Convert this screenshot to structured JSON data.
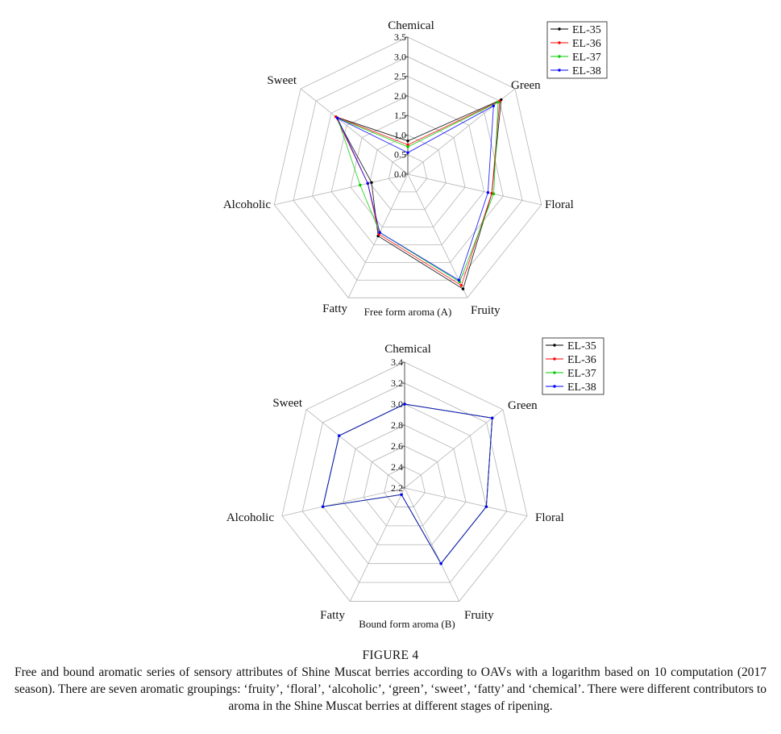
{
  "chart_data": [
    {
      "type": "radar",
      "title": "Free form aroma (A)",
      "axes": [
        "Chemical",
        "Green",
        "Floral",
        "Fruity",
        "Fatty",
        "Alcoholic",
        "Sweet"
      ],
      "rlim": [
        0.0,
        3.5
      ],
      "ticks": [
        "0.0",
        "0.5",
        "1.0",
        "1.5",
        "2.0",
        "2.5",
        "3.0",
        "3.5"
      ],
      "grid": true,
      "legend_position": "top-right",
      "series": [
        {
          "name": "EL-35",
          "color": "#000000",
          "values": [
            0.85,
            3.05,
            2.2,
            3.25,
            1.75,
            0.95,
            2.35
          ]
        },
        {
          "name": "EL-36",
          "color": "#ff0000",
          "values": [
            0.75,
            3.0,
            2.2,
            3.15,
            1.7,
            1.05,
            2.35
          ]
        },
        {
          "name": "EL-37",
          "color": "#00cc00",
          "values": [
            0.7,
            2.95,
            2.25,
            3.05,
            1.65,
            1.25,
            2.3
          ]
        },
        {
          "name": "EL-38",
          "color": "#0000ff",
          "values": [
            0.55,
            2.8,
            2.1,
            3.0,
            1.65,
            1.05,
            2.3
          ]
        }
      ]
    },
    {
      "type": "radar",
      "title": "Bound form aroma (B)",
      "axes": [
        "Chemical",
        "Green",
        "Floral",
        "Fruity",
        "Fatty",
        "Alcoholic",
        "Sweet"
      ],
      "rlim": [
        2.2,
        3.4
      ],
      "ticks": [
        "2.2",
        "2.4",
        "2.6",
        "2.8",
        "3.0",
        "3.2",
        "3.4"
      ],
      "grid": true,
      "legend_position": "top-right",
      "series": [
        {
          "name": "EL-35",
          "color": "#000000",
          "values": [
            3.0,
            3.27,
            3.0,
            3.0,
            2.27,
            3.0,
            3.0
          ]
        },
        {
          "name": "EL-36",
          "color": "#ff0000",
          "values": [
            3.0,
            3.27,
            3.0,
            3.0,
            2.27,
            3.0,
            3.0
          ]
        },
        {
          "name": "EL-37",
          "color": "#00cc00",
          "values": [
            3.0,
            3.27,
            3.0,
            3.0,
            2.27,
            3.0,
            3.0
          ]
        },
        {
          "name": "EL-38",
          "color": "#0000ff",
          "values": [
            3.0,
            3.27,
            3.0,
            3.0,
            2.27,
            3.0,
            3.0
          ]
        }
      ]
    }
  ],
  "caption": {
    "title": "FIGURE 4",
    "text": "Free and bound aromatic series of sensory attributes of Shine Muscat berries according to OAVs with a logarithm based on 10 computation (2017 season). There are seven aromatic groupings: ‘fruity’, ‘floral’, ‘alcoholic’, ‘green’, ‘sweet’, ‘fatty’ and ‘chemical’. There were different contributors to aroma in the Shine Muscat berries at different stages of ripening."
  }
}
